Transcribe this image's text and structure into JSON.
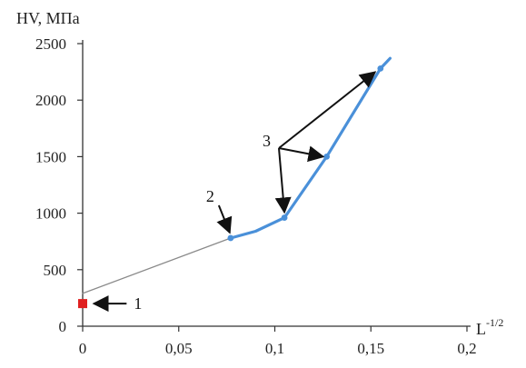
{
  "chart_data": {
    "type": "line",
    "ylabel": "HV, МПа",
    "xlabel_base": "L",
    "xlabel_exp": "-1/2",
    "xlim": [
      0,
      0.2
    ],
    "ylim": [
      0,
      2500
    ],
    "x_ticks": [
      "0",
      "0,05",
      "0,1",
      "0,15",
      "0,2"
    ],
    "y_ticks": [
      "0",
      "500",
      "1000",
      "1500",
      "2000",
      "2500"
    ],
    "grid": false,
    "legend": "none",
    "series": [
      {
        "style": "thin-line",
        "color": "#8a8a8a",
        "points": [
          [
            0,
            290
          ],
          [
            0.077,
            780
          ]
        ]
      },
      {
        "style": "thick-line",
        "color": "#4a90d9",
        "points": [
          [
            0.077,
            780
          ],
          [
            0.09,
            840
          ],
          [
            0.105,
            960
          ],
          [
            0.127,
            1500
          ],
          [
            0.155,
            2280
          ],
          [
            0.16,
            2370
          ]
        ]
      }
    ],
    "markers": [
      {
        "x": 0,
        "y": 200,
        "shape": "square",
        "color": "#e02020"
      },
      {
        "x": 0.077,
        "y": 780,
        "shape": "dot",
        "color": "#4a90d9"
      },
      {
        "x": 0.105,
        "y": 960,
        "shape": "dot",
        "color": "#4a90d9"
      },
      {
        "x": 0.127,
        "y": 1500,
        "shape": "dot",
        "color": "#4a90d9"
      },
      {
        "x": 0.155,
        "y": 2280,
        "shape": "dot",
        "color": "#4a90d9"
      }
    ],
    "annotations": [
      {
        "label": "1",
        "target": [
          0.003,
          200
        ]
      },
      {
        "label": "2",
        "target": [
          0.077,
          780
        ]
      },
      {
        "label": "3",
        "targets": [
          [
            0.105,
            960
          ],
          [
            0.127,
            1500
          ],
          [
            0.155,
            2280
          ]
        ]
      }
    ]
  }
}
